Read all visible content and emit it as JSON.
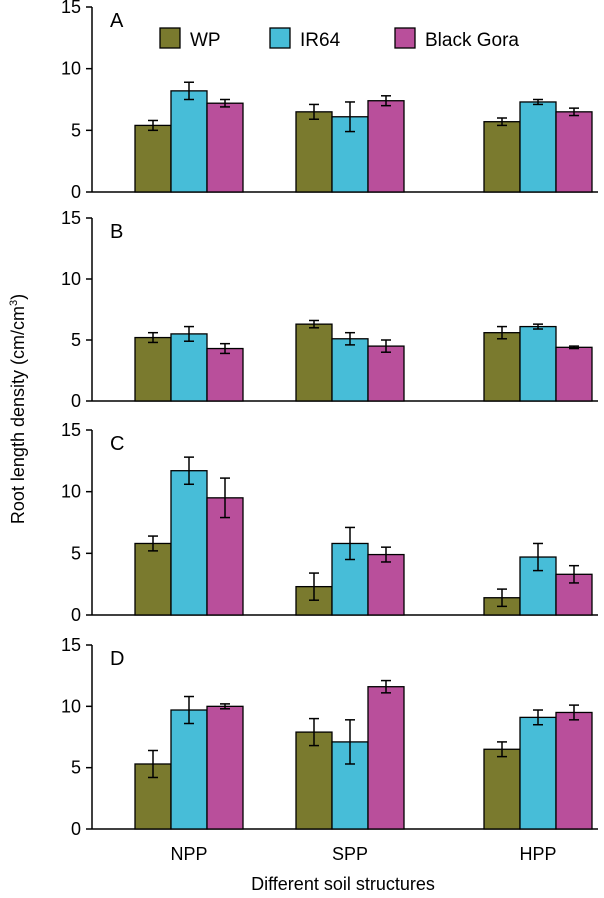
{
  "figure": {
    "ylabel": "Root length density (cm/cm",
    "ylabel_sup": "3",
    "ylabel_close": ")",
    "xlabel": "Different soil structures"
  },
  "colors": {
    "WP": "#7a7a2e",
    "IR64": "#47bdd8",
    "Black Gora": "#b94f9b"
  },
  "chart_data": [
    {
      "type": "bar",
      "panel": "A",
      "categories": [
        "NPP",
        "SPP",
        "HPP"
      ],
      "ylim": [
        0,
        15
      ],
      "yticks": [
        0,
        5,
        10,
        15
      ],
      "legend": [
        "WP",
        "IR64",
        "Black Gora"
      ],
      "legend_position": "top",
      "series": [
        {
          "name": "WP",
          "values": [
            5.4,
            6.5,
            5.7
          ],
          "errors": [
            0.4,
            0.6,
            0.3
          ]
        },
        {
          "name": "IR64",
          "values": [
            8.2,
            6.1,
            7.3
          ],
          "errors": [
            0.7,
            1.2,
            0.2
          ]
        },
        {
          "name": "Black Gora",
          "values": [
            7.2,
            7.4,
            6.5
          ],
          "errors": [
            0.3,
            0.4,
            0.3
          ]
        }
      ]
    },
    {
      "type": "bar",
      "panel": "B",
      "categories": [
        "NPP",
        "SPP",
        "HPP"
      ],
      "ylim": [
        0,
        15
      ],
      "yticks": [
        0,
        5,
        10,
        15
      ],
      "series": [
        {
          "name": "WP",
          "values": [
            5.2,
            6.3,
            5.6
          ],
          "errors": [
            0.4,
            0.3,
            0.5
          ]
        },
        {
          "name": "IR64",
          "values": [
            5.5,
            5.1,
            6.1
          ],
          "errors": [
            0.6,
            0.5,
            0.2
          ]
        },
        {
          "name": "Black Gora",
          "values": [
            4.3,
            4.5,
            4.4
          ],
          "errors": [
            0.4,
            0.5,
            0.1
          ]
        }
      ]
    },
    {
      "type": "bar",
      "panel": "C",
      "categories": [
        "NPP",
        "SPP",
        "HPP"
      ],
      "ylim": [
        0,
        15
      ],
      "yticks": [
        0,
        5,
        10,
        15
      ],
      "series": [
        {
          "name": "WP",
          "values": [
            5.8,
            2.3,
            1.4
          ],
          "errors": [
            0.6,
            1.1,
            0.7
          ]
        },
        {
          "name": "IR64",
          "values": [
            11.7,
            5.8,
            4.7
          ],
          "errors": [
            1.1,
            1.3,
            1.1
          ]
        },
        {
          "name": "Black Gora",
          "values": [
            9.5,
            4.9,
            3.3
          ],
          "errors": [
            1.6,
            0.6,
            0.7
          ]
        }
      ]
    },
    {
      "type": "bar",
      "panel": "D",
      "categories": [
        "NPP",
        "SPP",
        "HPP"
      ],
      "ylim": [
        0,
        15
      ],
      "yticks": [
        0,
        5,
        10,
        15
      ],
      "series": [
        {
          "name": "WP",
          "values": [
            5.3,
            7.9,
            6.5
          ],
          "errors": [
            1.1,
            1.1,
            0.6
          ]
        },
        {
          "name": "IR64",
          "values": [
            9.7,
            7.1,
            9.1
          ],
          "errors": [
            1.1,
            1.8,
            0.6
          ]
        },
        {
          "name": "Black Gora",
          "values": [
            10.0,
            11.6,
            9.5
          ],
          "errors": [
            0.2,
            0.5,
            0.6
          ]
        }
      ]
    }
  ]
}
